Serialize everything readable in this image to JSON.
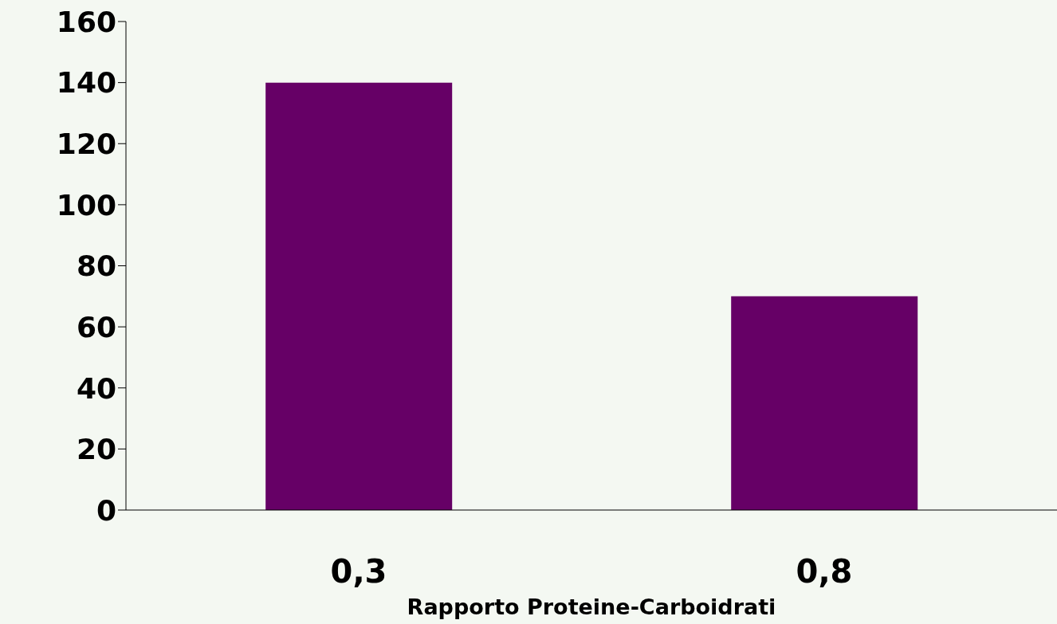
{
  "chart_data": {
    "type": "bar",
    "xlabel": "Rapporto Proteine-Carboidrati",
    "categories": [
      "0,3",
      "0,8"
    ],
    "values": [
      140,
      70
    ],
    "color": "#660066",
    "ylim": [
      0,
      160
    ],
    "yticks": [
      0,
      20,
      40,
      60,
      80,
      100,
      120,
      140,
      160
    ],
    "grid": false
  }
}
